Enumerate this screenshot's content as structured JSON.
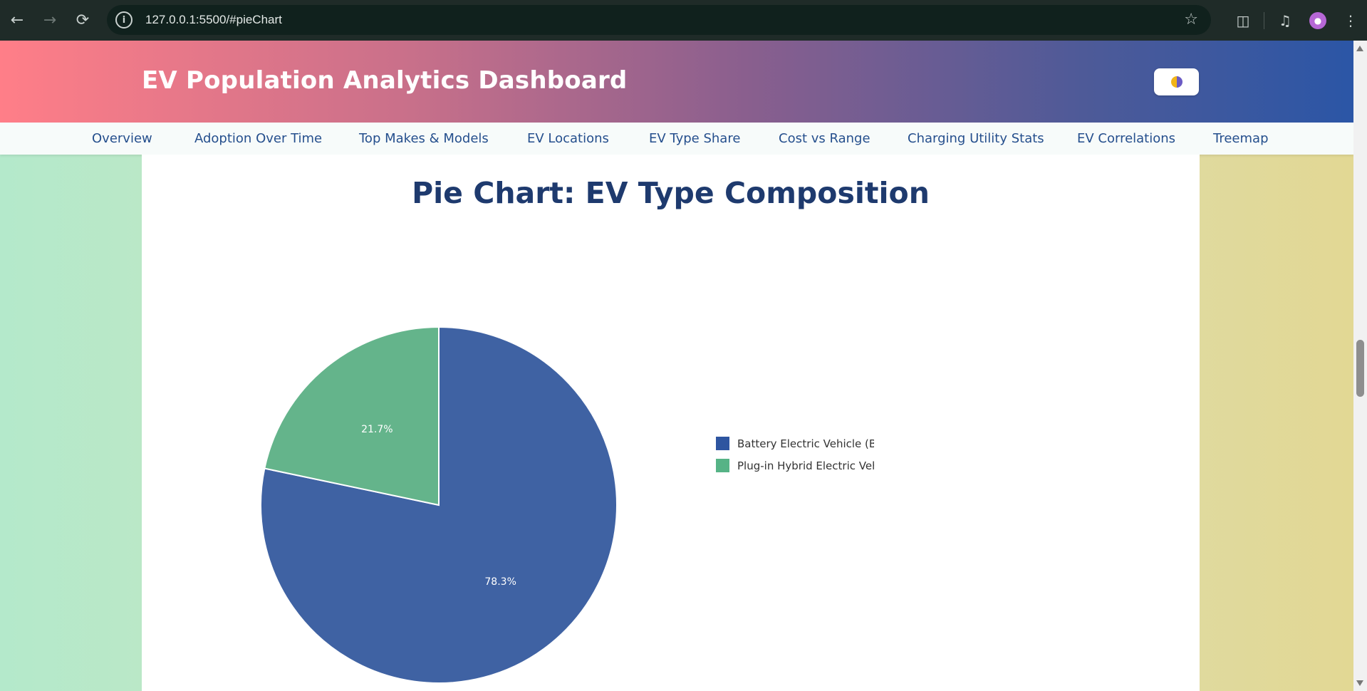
{
  "browser": {
    "url": "127.0.0.1:5500/#pieChart",
    "icons": [
      "back-icon",
      "forward-icon",
      "reload-icon",
      "site-info-icon",
      "star-icon",
      "extensions-icon",
      "media-icon",
      "profile-icon",
      "menu-icon"
    ]
  },
  "header": {
    "title": "EV Population Analytics Dashboard",
    "toggle_icon": "theme-toggle-icon"
  },
  "nav": {
    "items": [
      {
        "label": "Overview"
      },
      {
        "label": "Adoption Over Time"
      },
      {
        "label": "Top Makes & Models"
      },
      {
        "label": "EV Locations"
      },
      {
        "label": "EV Type Share"
      },
      {
        "label": "Cost vs Range"
      },
      {
        "label": "Charging Utility Stats"
      },
      {
        "label": "EV Correlations"
      },
      {
        "label": "Treemap"
      }
    ]
  },
  "section": {
    "heading": "Pie Chart: EV Type Composition"
  },
  "colors": {
    "bev": "#3f62a3",
    "phev": "#64b48b",
    "legend_bev": "#2e55a0",
    "legend_phev": "#56b386",
    "heading": "#1e3a6e",
    "nav_text": "#254f8d"
  },
  "chart_data": {
    "type": "pie",
    "categories": [
      "Battery Electric Vehicle (BEV",
      "Plug-in Hybrid Electric Vehi"
    ],
    "values": [
      78.3,
      21.7
    ],
    "labels": [
      "78.3%",
      "21.7%"
    ],
    "title": "",
    "legend_position": "right"
  }
}
